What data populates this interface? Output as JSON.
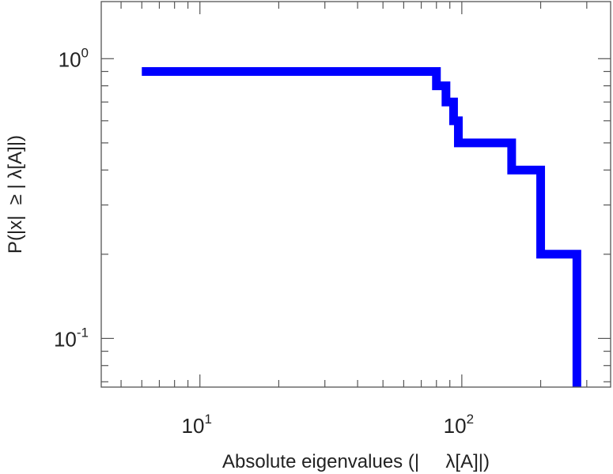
{
  "chart_data": {
    "type": "line",
    "title": "",
    "xlabel": "Absolute eigenvalues (|     λ[A]|)",
    "ylabel": "P(|x|  ≥ | λ[A]|)",
    "x_scale": "log",
    "y_scale": "log",
    "xlim": [
      4.2,
      370
    ],
    "ylim": [
      0.067,
      1.6
    ],
    "x_ticks": [
      {
        "value": 10,
        "base": "10",
        "exp": "1"
      },
      {
        "value": 100,
        "base": "10",
        "exp": "2"
      }
    ],
    "y_ticks": [
      {
        "value": 1,
        "base": "10",
        "exp": "0"
      },
      {
        "value": 0.1,
        "base": "10",
        "exp": "-1"
      }
    ],
    "grid": false,
    "legend": "none",
    "series": [
      {
        "color": "#0000ff",
        "step": "post",
        "x": [
          6,
          80,
          87,
          93,
          97,
          155,
          200,
          275
        ],
        "y": [
          0.9,
          0.8,
          0.7,
          0.6,
          0.5,
          0.4,
          0.2,
          0.1
        ],
        "end_x": 275,
        "end_y": 0.067
      }
    ]
  }
}
